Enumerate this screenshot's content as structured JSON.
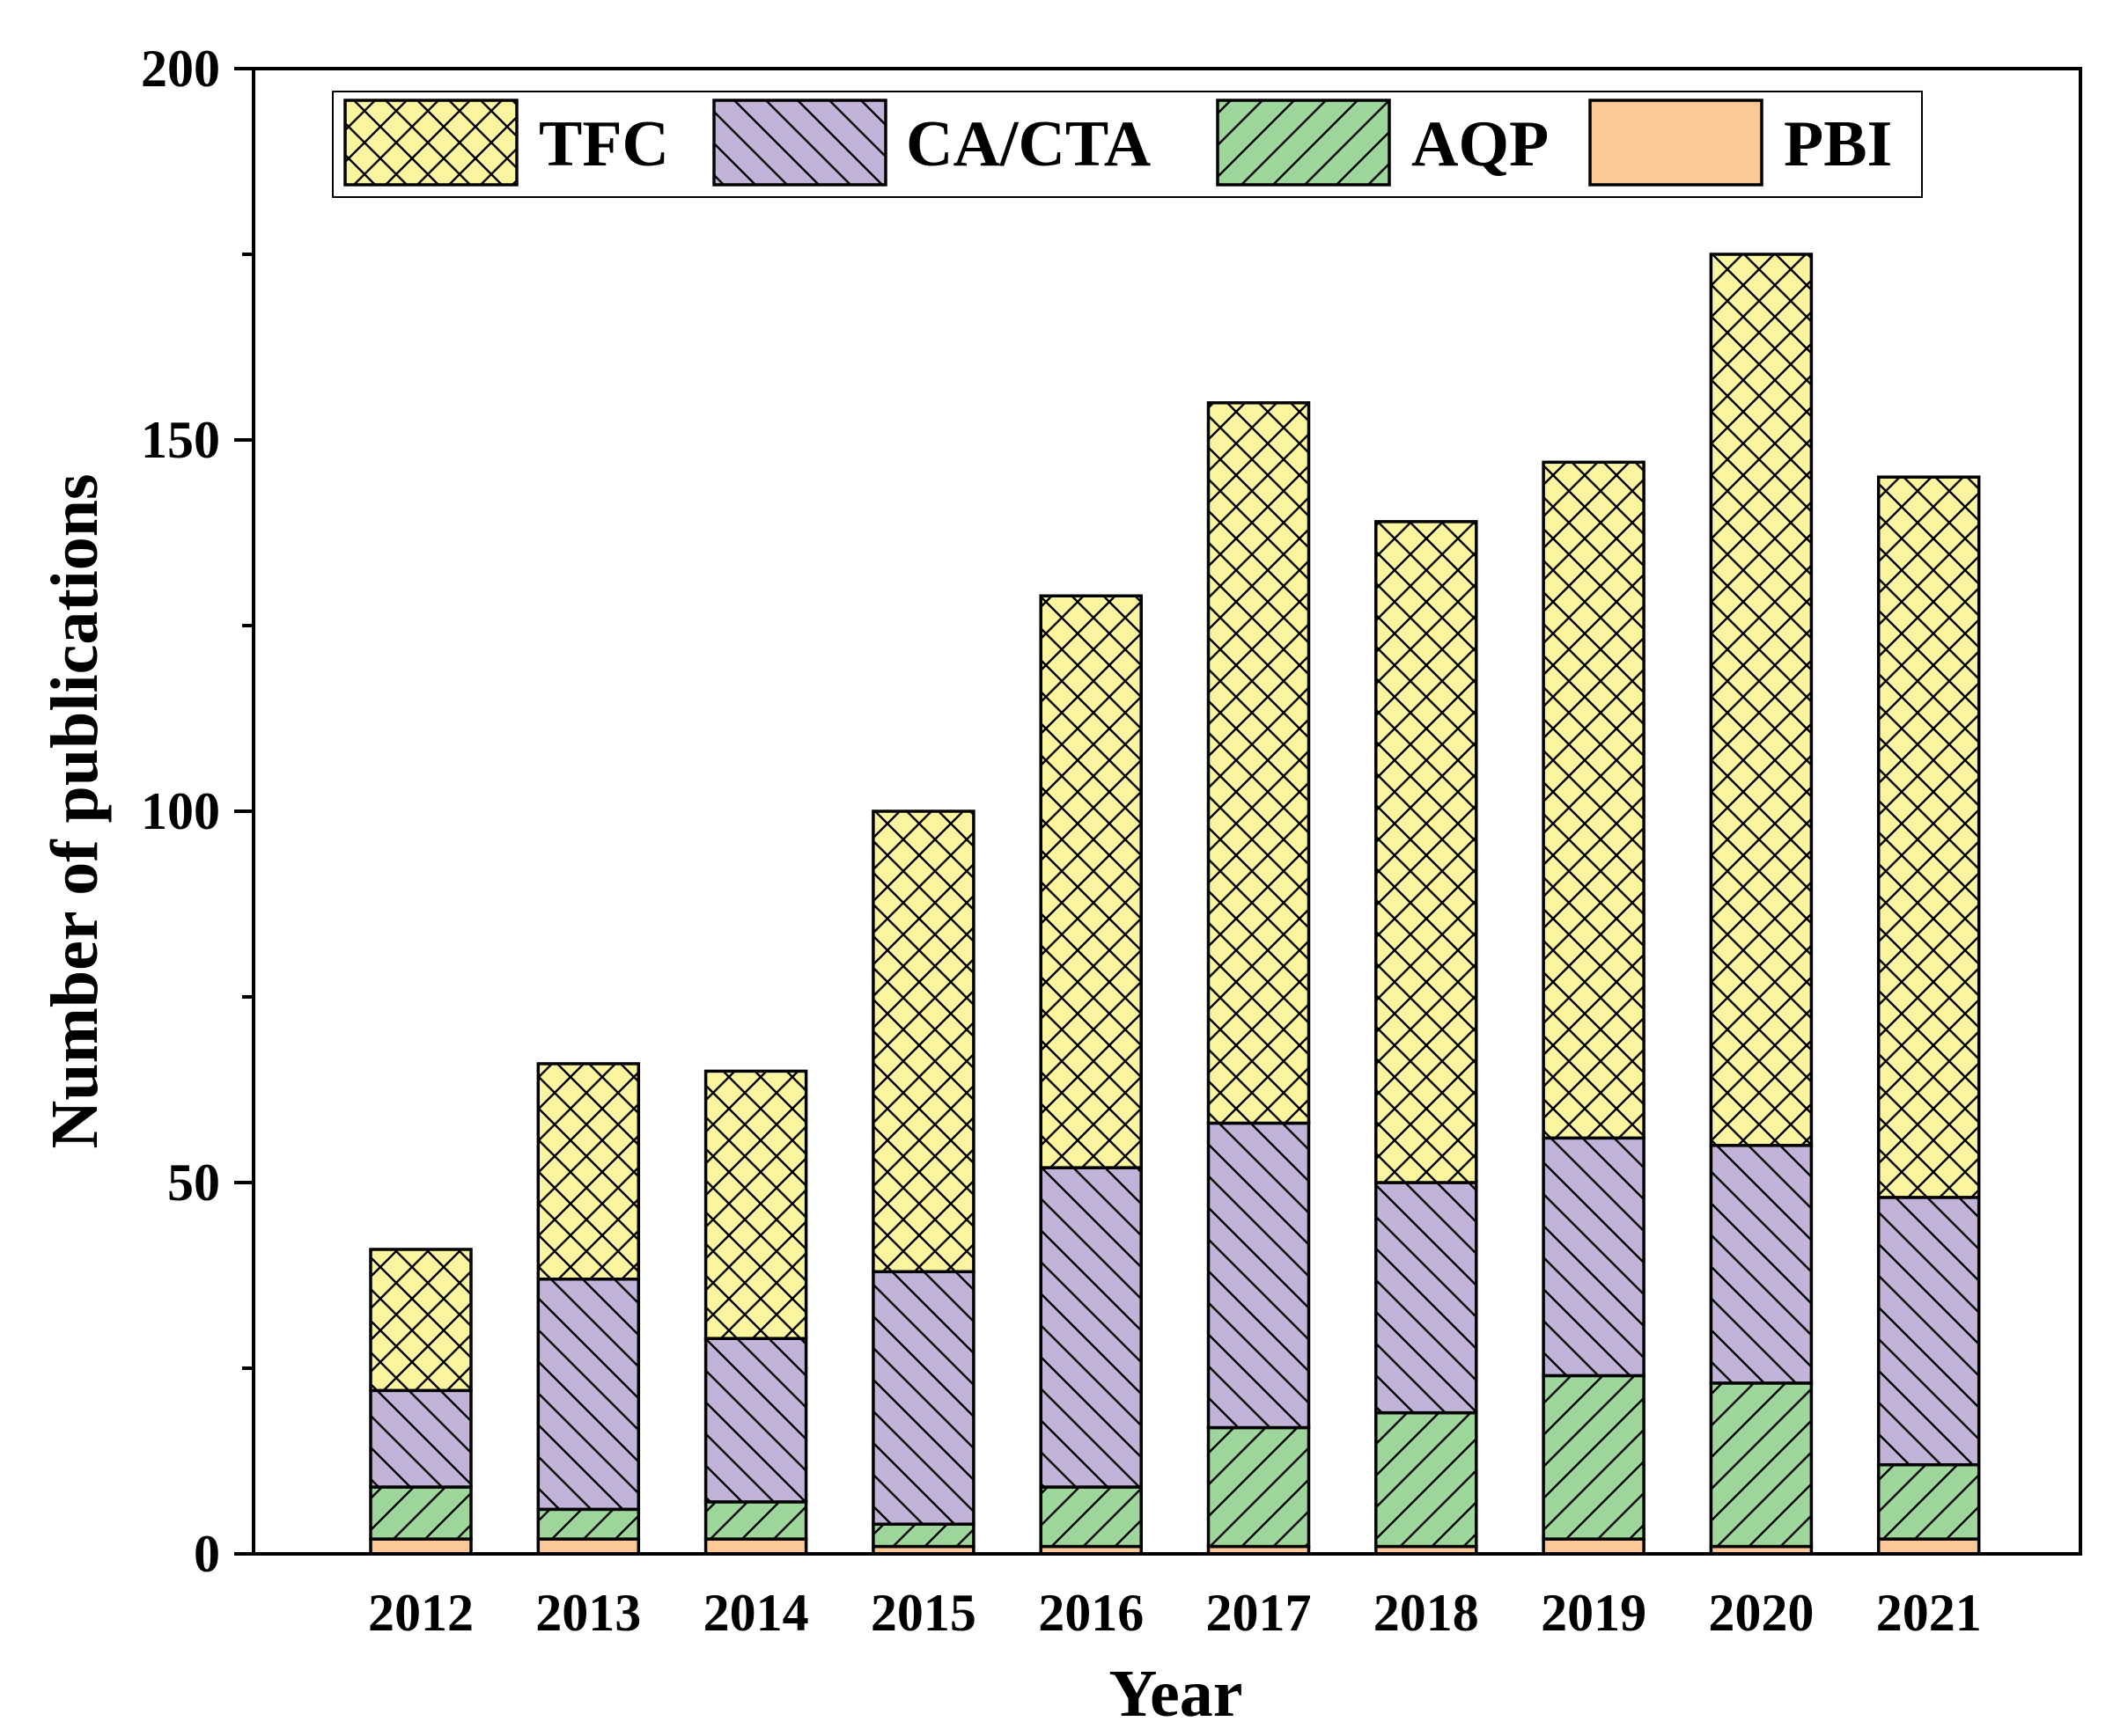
{
  "chart_data": {
    "type": "bar",
    "stacked": true,
    "title": "",
    "xlabel": "Year",
    "ylabel": "Number of publications",
    "categories": [
      "2012",
      "2013",
      "2014",
      "2015",
      "2016",
      "2017",
      "2018",
      "2019",
      "2020",
      "2021"
    ],
    "ylim": [
      0,
      200
    ],
    "yticks": [
      0,
      50,
      100,
      150,
      200
    ],
    "legend_position": "top",
    "grid": false,
    "series": [
      {
        "name": "PBI",
        "color": "#FCC896",
        "hatch": "none",
        "values": [
          2,
          2,
          2,
          1,
          1,
          1,
          1,
          2,
          1,
          2
        ]
      },
      {
        "name": "AQP",
        "color": "#9ED69C",
        "hatch": "forward-diagonal",
        "values": [
          7,
          4,
          5,
          3,
          8,
          16,
          18,
          22,
          22,
          10
        ]
      },
      {
        "name": "CA/CTA",
        "color": "#C2B4D8",
        "hatch": "back-diagonal",
        "values": [
          13,
          31,
          22,
          34,
          43,
          41,
          31,
          32,
          32,
          36
        ]
      },
      {
        "name": "TFC",
        "color": "#FAF59E",
        "hatch": "crosshatch",
        "values": [
          19,
          29,
          36,
          62,
          77,
          97,
          89,
          91,
          120,
          97
        ]
      }
    ],
    "legend_order": [
      "TFC",
      "CA/CTA",
      "AQP",
      "PBI"
    ]
  }
}
